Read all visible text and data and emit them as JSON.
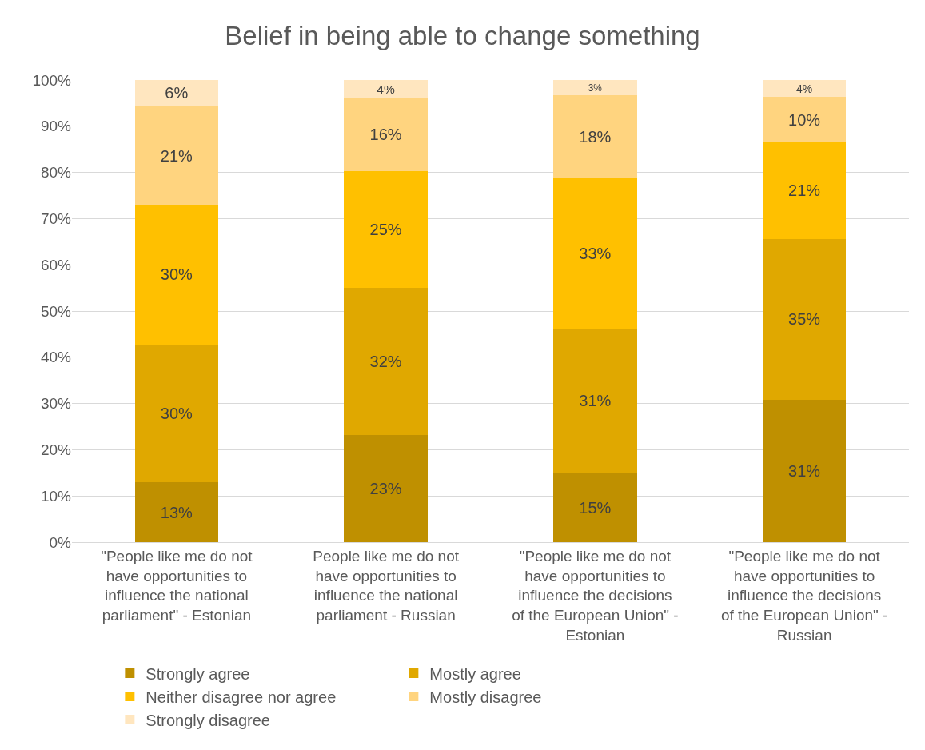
{
  "chart_data": {
    "type": "bar",
    "title": "Belief in being able to change something",
    "stacked": true,
    "categories": [
      "\"People like me do not have opportunities to influence the national parliament\" - Estonian",
      "People like me do not have opportunities to influence the national parliament - Russian",
      "\"People like me do not have opportunities to influence the decisions of the European Union\" - Estonian",
      "\"People like me do not have opportunities to influence the decisions of the European Union\" - Russian"
    ],
    "series": [
      {
        "name": "Strongly agree",
        "color": "#bf9000",
        "values": [
          12.9,
          23.2,
          15.0,
          30.8
        ],
        "value_labels": [
          "13%",
          "23%",
          "15%",
          "31%"
        ]
      },
      {
        "name": "Mostly agree",
        "color": "#e0a800",
        "values": [
          29.9,
          31.8,
          31.1,
          34.8
        ],
        "value_labels": [
          "30%",
          "32%",
          "31%",
          "35%"
        ]
      },
      {
        "name": "Neither disagree nor agree",
        "color": "#ffc000",
        "values": [
          30.2,
          25.3,
          32.8,
          20.9
        ],
        "value_labels": [
          "30%",
          "25%",
          "33%",
          "21%"
        ]
      },
      {
        "name": "Mostly disagree",
        "color": "#ffd47f",
        "values": [
          21.3,
          15.7,
          17.8,
          9.8
        ],
        "value_labels": [
          "21%",
          "16%",
          "18%",
          "10%"
        ]
      },
      {
        "name": "Strongly disagree",
        "color": "#ffe6bf",
        "values": [
          5.7,
          4.0,
          3.3,
          3.7
        ],
        "value_labels": [
          "6%",
          "4%",
          "3%",
          "4%"
        ]
      }
    ],
    "ylim": [
      0,
      100
    ],
    "yticks": [
      {
        "value": 0,
        "label": "0%"
      },
      {
        "value": 10,
        "label": "10%"
      },
      {
        "value": 20,
        "label": "20%"
      },
      {
        "value": 30,
        "label": "30%"
      },
      {
        "value": 40,
        "label": "40%"
      },
      {
        "value": 50,
        "label": "50%"
      },
      {
        "value": 60,
        "label": "60%"
      },
      {
        "value": 70,
        "label": "70%"
      },
      {
        "value": 80,
        "label": "80%"
      },
      {
        "value": 90,
        "label": "90%"
      },
      {
        "value": 100,
        "label": "100%"
      }
    ],
    "grid": "y",
    "legend": "bottom"
  }
}
